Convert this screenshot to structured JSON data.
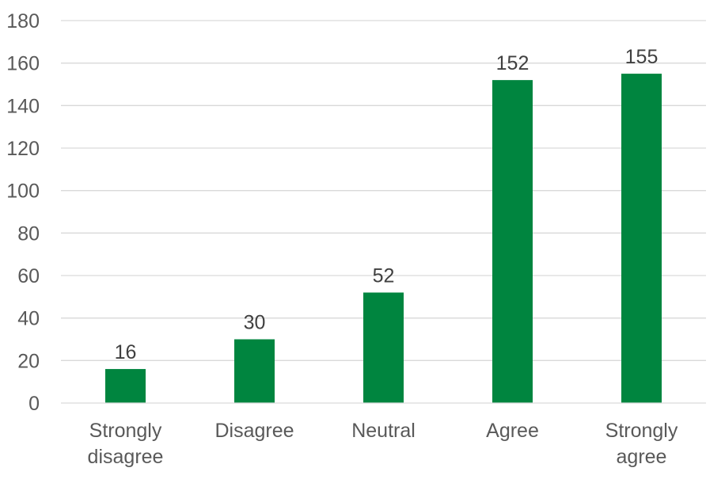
{
  "chart_data": {
    "type": "bar",
    "categories": [
      [
        "Strongly",
        "disagree"
      ],
      [
        "Disagree"
      ],
      [
        "Neutral"
      ],
      [
        "Agree"
      ],
      [
        "Strongly",
        "agree"
      ]
    ],
    "values": [
      16,
      30,
      52,
      152,
      155
    ],
    "yticks": [
      "0",
      "20",
      "40",
      "60",
      "80",
      "100",
      "120",
      "140",
      "160",
      "180"
    ],
    "ylim": [
      0,
      180
    ],
    "grid": true,
    "legend": "none",
    "data_labels": true,
    "bar_color": "#00853f"
  }
}
